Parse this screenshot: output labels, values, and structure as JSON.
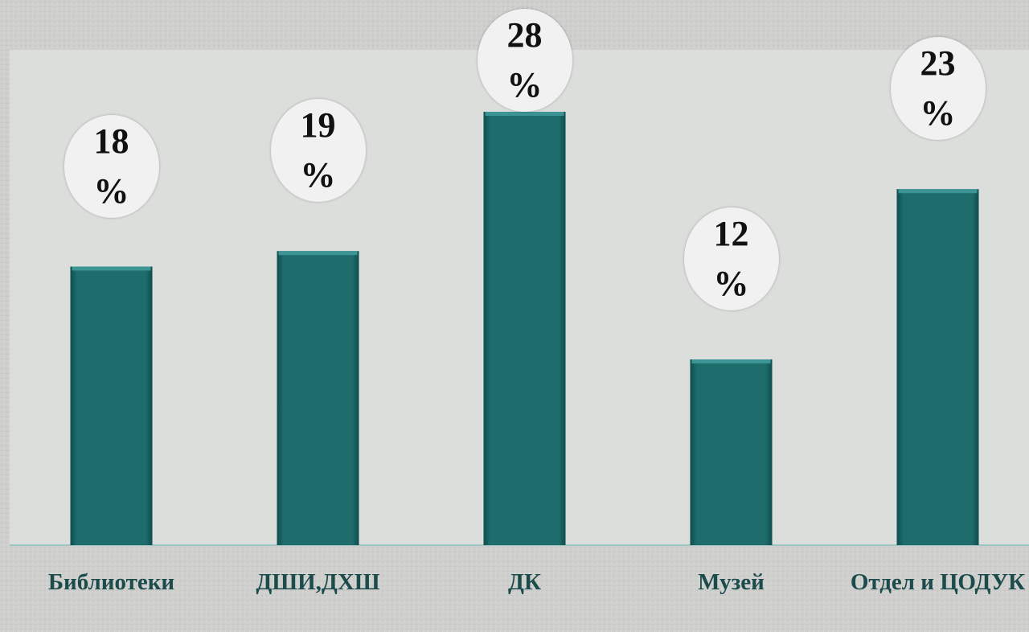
{
  "chart_data": {
    "type": "bar",
    "categories": [
      "Библиотеки",
      "ДШИ,ДХШ",
      "ДК",
      "Музей",
      "Отдел и ЦОДУК"
    ],
    "values": [
      18,
      19,
      28,
      12,
      23
    ],
    "value_labels": [
      "18 %",
      "19 %",
      "28 %",
      "12 %",
      "23 %"
    ],
    "color": "#1e6c6c",
    "ylim": [
      0,
      32
    ]
  }
}
